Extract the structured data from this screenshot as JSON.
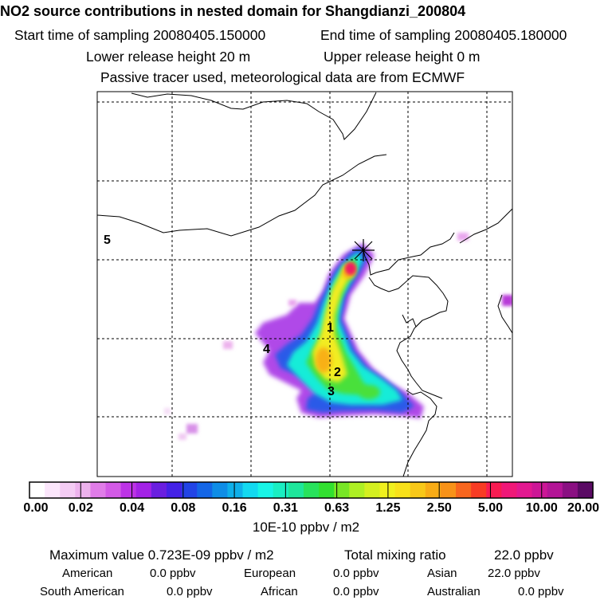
{
  "title": "NO2 source contributions in nested domain for Shangdianzi_200804",
  "header": {
    "start_label": "Start time of sampling 20080405.150000",
    "end_label": "End time of sampling 20080405.180000",
    "lower_label": "Lower release height   20 m",
    "upper_label": "Upper release height    0 m",
    "tracer_note": "Passive tracer used, meteorological data are from ECMWF"
  },
  "map": {
    "region_labels": [
      "1",
      "2",
      "3",
      "4",
      "5"
    ],
    "receptor_marker": "receptor-star-icon"
  },
  "colorbar": {
    "ticks": [
      "0.00",
      "0.02",
      "0.04",
      "0.08",
      "0.16",
      "0.31",
      "0.63",
      "1.25",
      "2.50",
      "5.00",
      "10.00",
      "20.00"
    ],
    "units": "10E-10 ppbv / m2",
    "colors": [
      "#ffffff",
      "#fbe6fb",
      "#f4ccf4",
      "#edb2ed",
      "#e07ce8",
      "#d35ae6",
      "#bd33e6",
      "#a322e6",
      "#6a1fe0",
      "#4422e6",
      "#2244e6",
      "#1466e6",
      "#0f8de6",
      "#0fb0ea",
      "#13d9f0",
      "#18f5e6",
      "#1aeec2",
      "#1ee69b",
      "#28e25c",
      "#32e030",
      "#78e626",
      "#aef024",
      "#d4f020",
      "#f0f01e",
      "#f8e11a",
      "#f8c818",
      "#f8ac16",
      "#f89218",
      "#f8661e",
      "#f83c24",
      "#f81c52",
      "#f01878",
      "#e21890",
      "#cc1696",
      "#b31496",
      "#8a1082",
      "#5a0a64"
    ]
  },
  "footer": {
    "max_label": "Maximum value  0.723E-09 ppbv / m2",
    "total_label": "Total mixing ratio",
    "total_value": "22.0 ppbv",
    "american_label": "American",
    "american_value": "0.0 ppbv",
    "european_label": "European",
    "european_value": "0.0 ppbv",
    "asian_label": "Asian",
    "asian_value": "22.0 ppbv",
    "south_american_label": "South American",
    "south_american_value": "0.0 ppbv",
    "african_label": "African",
    "african_value": "0.0 ppbv",
    "australian_label": "Australian",
    "australian_value": "0.0 ppbv"
  }
}
